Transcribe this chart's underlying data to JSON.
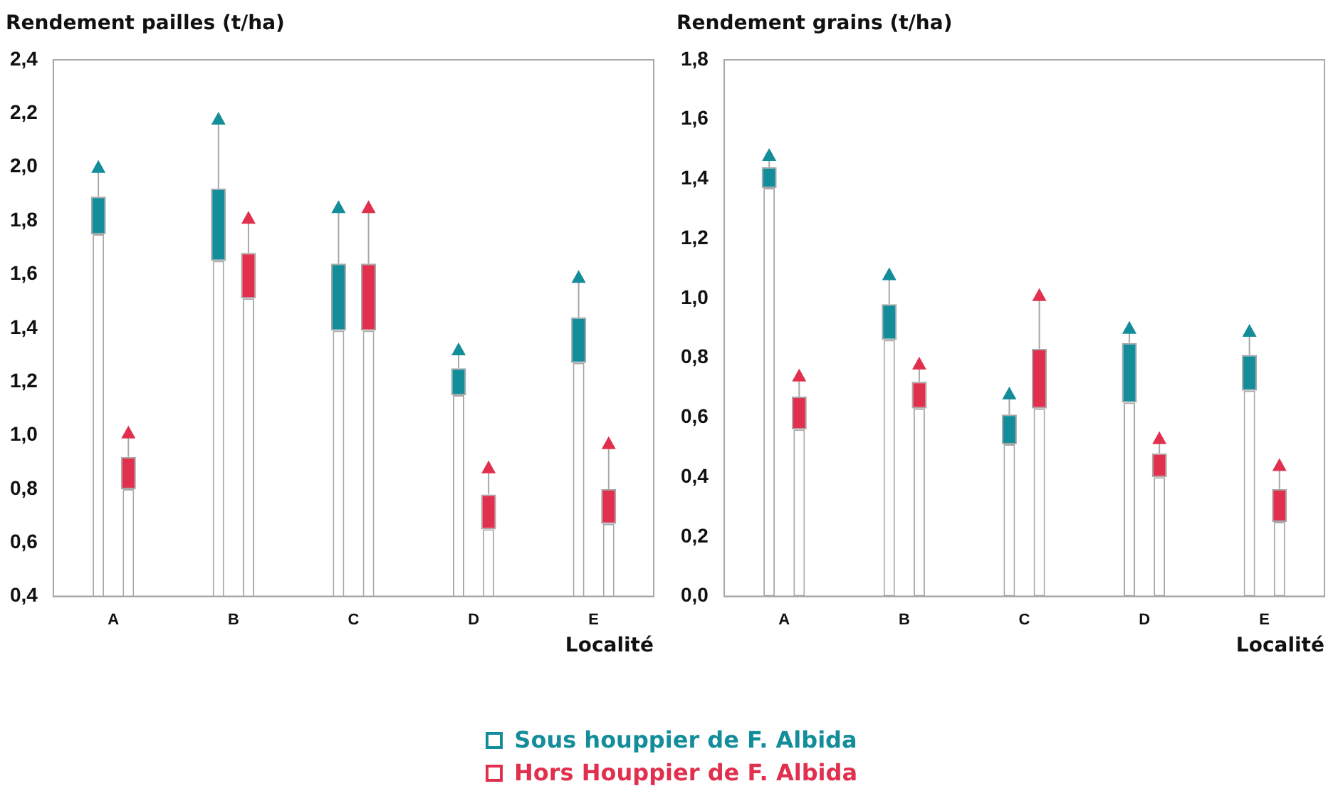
{
  "chart_data": [
    {
      "type": "bar",
      "ylabel": "Rendement pailles (t/ha)",
      "xlabel": "Localité",
      "categories": [
        "A",
        "B",
        "C",
        "D",
        "E"
      ],
      "ylim": [
        0.4,
        2.4
      ],
      "yticks": [
        {
          "value": 0.4,
          "label": "0,4"
        },
        {
          "value": 0.6,
          "label": "0,6"
        },
        {
          "value": 0.8,
          "label": "0,8"
        },
        {
          "value": 1.0,
          "label": "1,0"
        },
        {
          "value": 1.2,
          "label": "1,2"
        },
        {
          "value": 1.4,
          "label": "1,4"
        },
        {
          "value": 1.6,
          "label": "1,6"
        },
        {
          "value": 1.8,
          "label": "1,8"
        },
        {
          "value": 2.0,
          "label": "2,0"
        },
        {
          "value": 2.2,
          "label": "2,2"
        },
        {
          "value": 2.4,
          "label": "2,4"
        }
      ],
      "grid": false,
      "marker": "triangle",
      "legend": "bottom",
      "series": [
        {
          "color": "#ffffff",
          "values": [
            1.75,
            1.65,
            1.39,
            1.15,
            1.27
          ]
        },
        {
          "name": "Sous houppier de F. Albida",
          "color": "#138d9a",
          "base": [
            1.75,
            1.65,
            1.39,
            1.15,
            1.27
          ],
          "values": [
            0.14,
            0.27,
            0.25,
            0.1,
            0.17
          ]
        },
        {
          "type": "scatter",
          "color": "#138d9a",
          "x": [
            "A",
            "B",
            "C",
            "D",
            "E"
          ],
          "values": [
            2.0,
            2.18,
            1.85,
            1.32,
            1.59
          ],
          "errors": [
            [
              1.89,
              2.0
            ],
            [
              1.92,
              2.18
            ],
            [
              1.64,
              1.85
            ],
            [
              1.25,
              1.32
            ],
            [
              1.44,
              1.59
            ]
          ]
        },
        {
          "color": "#ffffff",
          "values": [
            0.8,
            1.51,
            1.39,
            0.65,
            0.67
          ]
        },
        {
          "name": "Hors Houppier de F. Albida",
          "color": "#e0304e",
          "base": [
            0.8,
            1.51,
            1.39,
            0.65,
            0.67
          ],
          "values": [
            0.12,
            0.17,
            0.25,
            0.13,
            0.13
          ]
        },
        {
          "type": "scatter",
          "color": "#e0304e",
          "x": [
            "A",
            "B",
            "C",
            "D",
            "E"
          ],
          "values": [
            1.01,
            1.81,
            1.85,
            0.88,
            0.97
          ],
          "errors": [
            [
              0.92,
              1.01
            ],
            [
              1.68,
              1.81
            ],
            [
              1.64,
              1.85
            ],
            [
              0.78,
              0.88
            ],
            [
              0.8,
              0.97
            ]
          ]
        }
      ]
    },
    {
      "type": "bar",
      "ylabel": "Rendement grains (t/ha)",
      "xlabel": "Localité",
      "categories": [
        "A",
        "B",
        "C",
        "D",
        "E"
      ],
      "ylim": [
        0,
        1.8
      ],
      "yticks": [
        {
          "value": 0,
          "label": "0,0"
        },
        {
          "value": 0.2,
          "label": "0,2"
        },
        {
          "value": 0.4,
          "label": "0,4"
        },
        {
          "value": 0.6,
          "label": "0,6"
        },
        {
          "value": 0.8,
          "label": "0,8"
        },
        {
          "value": 1.0,
          "label": "1,0"
        },
        {
          "value": 1.2,
          "label": "1,2"
        },
        {
          "value": 1.4,
          "label": "1,4"
        },
        {
          "value": 1.6,
          "label": "1,6"
        },
        {
          "value": 1.8,
          "label": "1,8"
        }
      ],
      "grid": false,
      "marker": "triangle",
      "series": [
        {
          "color": "#ffffff",
          "values": [
            1.37,
            0.86,
            0.51,
            0.65,
            0.69
          ]
        },
        {
          "color": "#138d9a",
          "base": [
            1.37,
            0.86,
            0.51,
            0.65,
            0.69
          ],
          "values": [
            0.07,
            0.12,
            0.1,
            0.2,
            0.12
          ]
        },
        {
          "type": "scatter",
          "color": "#138d9a",
          "x": [
            "A",
            "B",
            "C",
            "D",
            "E"
          ],
          "values": [
            1.48,
            1.08,
            0.68,
            0.9,
            0.89
          ],
          "errors": [
            [
              1.44,
              1.48
            ],
            [
              0.98,
              1.08
            ],
            [
              0.61,
              0.68
            ],
            [
              0.85,
              0.9
            ],
            [
              0.81,
              0.89
            ]
          ]
        },
        {
          "color": "#ffffff",
          "values": [
            0.56,
            0.63,
            0.63,
            0.4,
            0.25
          ]
        },
        {
          "color": "#e0304e",
          "base": [
            0.56,
            0.63,
            0.63,
            0.4,
            0.25
          ],
          "values": [
            0.11,
            0.09,
            0.2,
            0.08,
            0.11
          ]
        },
        {
          "type": "scatter",
          "color": "#e0304e",
          "x": [
            "A",
            "B",
            "C",
            "D",
            "E"
          ],
          "values": [
            0.74,
            0.78,
            1.01,
            0.53,
            0.44
          ],
          "errors": [
            [
              0.67,
              0.74
            ],
            [
              0.72,
              0.78
            ],
            [
              0.83,
              1.01
            ],
            [
              0.48,
              0.53
            ],
            [
              0.36,
              0.44
            ]
          ]
        }
      ]
    }
  ]
}
